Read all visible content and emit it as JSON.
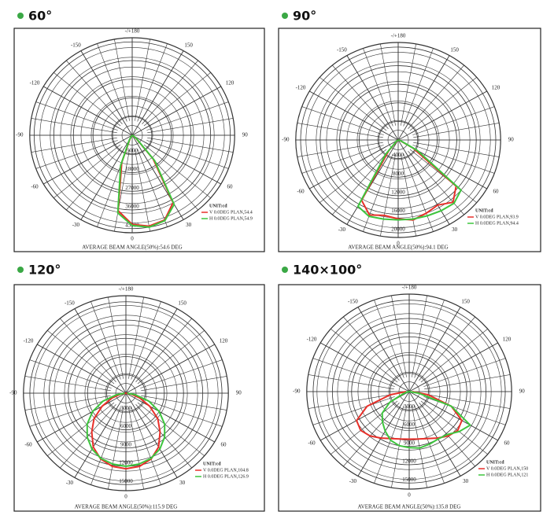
{
  "chart_data": [
    {
      "type": "polar",
      "title": "60°",
      "unit_label": "UNIT:cd",
      "note": "AVERAGE BEAM ANGLE(50%):54.6 DEG",
      "x": [
        -90,
        -80,
        -70,
        -60,
        -50,
        -40,
        -30,
        -20,
        -10,
        0,
        10,
        20,
        30,
        40,
        50,
        60,
        70,
        80,
        90
      ],
      "rlim": [
        0,
        47000
      ],
      "rticks": [
        9000,
        18000,
        27000,
        36000,
        45000
      ],
      "angle_ticks": [
        {
          "value": 180,
          "label": "-/+180"
        },
        -150,
        150,
        -120,
        120,
        -90,
        90,
        -60,
        60,
        -30,
        30,
        0
      ],
      "series": [
        {
          "name": "V 0.0DEG PLAN,54.4",
          "color": "#e8302a",
          "values": [
            0,
            0,
            0,
            0,
            0,
            300,
            2000,
            14000,
            37000,
            43000,
            44500,
            43500,
            37500,
            15000,
            2200,
            300,
            0,
            0,
            0
          ]
        },
        {
          "name": "H 0.0DEG PLAN,54.9",
          "color": "#3ec53e",
          "values": [
            0,
            0,
            0,
            0,
            0,
            400,
            2500,
            15500,
            38000,
            43500,
            45000,
            43800,
            38500,
            16000,
            2600,
            400,
            0,
            0,
            0
          ]
        }
      ]
    },
    {
      "type": "polar",
      "title": "90°",
      "unit_label": "UNIT:cd",
      "note": "AVERAGE BEAM ANGLE(50%):94.1 DEG",
      "x": [
        -90,
        -80,
        -70,
        -60,
        -50,
        -40,
        -30,
        -20,
        -10,
        0,
        10,
        20,
        30,
        40,
        50,
        60,
        70,
        80,
        90
      ],
      "rlim": [
        0,
        21000
      ],
      "rticks": [
        4000,
        8000,
        12000,
        16000,
        20000
      ],
      "angle_ticks": [
        {
          "value": 180,
          "label": "-/+180"
        },
        -150,
        150,
        -120,
        120,
        -90,
        90,
        -60,
        60,
        -30,
        30,
        0
      ],
      "series": [
        {
          "name": "V 0.0DEG PLAN,93.9",
          "color": "#e8302a",
          "values": [
            0,
            0,
            0,
            0,
            300,
            3000,
            15000,
            17200,
            16500,
            17000,
            17500,
            16800,
            16200,
            17500,
            15500,
            3500,
            400,
            0,
            0
          ]
        },
        {
          "name": "H 0.0DEG PLAN,94.4",
          "color": "#3ec53e",
          "values": [
            0,
            0,
            0,
            0,
            500,
            4000,
            16500,
            17500,
            17300,
            17200,
            17300,
            17400,
            17600,
            17800,
            16800,
            4500,
            600,
            0,
            0
          ]
        }
      ]
    },
    {
      "type": "polar",
      "title": "120°",
      "unit_label": "UNIT:cd",
      "note": "AVERAGE BEAM ANGLE(50%):115.9 DEG",
      "x": [
        -90,
        -80,
        -70,
        -60,
        -50,
        -40,
        -30,
        -20,
        -10,
        0,
        10,
        20,
        30,
        40,
        50,
        60,
        70,
        80,
        90
      ],
      "rlim": [
        0,
        16000
      ],
      "rticks": [
        3000,
        6000,
        9000,
        12000,
        15000
      ],
      "angle_ticks": [
        {
          "value": 180,
          "label": "-/+180"
        },
        -150,
        150,
        -120,
        120,
        -90,
        90,
        -60,
        60,
        -30,
        30,
        0
      ],
      "series": [
        {
          "name": "V 0.0DEG PLAN,104.8",
          "color": "#e8302a",
          "values": [
            0,
            800,
            2300,
            4300,
            6500,
            8300,
            10200,
            11500,
            12200,
            12400,
            12200,
            11500,
            10200,
            8300,
            6500,
            4300,
            2300,
            800,
            0
          ]
        },
        {
          "name": "H 0.0DEG PLAN,126.9",
          "color": "#3ec53e",
          "values": [
            200,
            1500,
            3800,
            6000,
            7900,
            9400,
            10600,
            11400,
            11800,
            12000,
            11800,
            11400,
            10600,
            9400,
            7900,
            6000,
            3800,
            1500,
            200
          ]
        }
      ]
    },
    {
      "type": "polar",
      "title": "140×100°",
      "unit_label": "UNIT:cd",
      "note": "AVERAGE BEAM ANGLE(50%):135.8 DEG",
      "x": [
        -90,
        -80,
        -70,
        -60,
        -50,
        -40,
        -30,
        -20,
        -10,
        0,
        10,
        20,
        30,
        40,
        50,
        60,
        70,
        80,
        90
      ],
      "rlim": [
        0,
        16000
      ],
      "rticks": [
        3000,
        6000,
        9000,
        12000,
        15000
      ],
      "angle_ticks": [
        {
          "value": 180,
          "label": "-/+180"
        },
        -150,
        150,
        -120,
        120,
        -90,
        90,
        -60,
        60,
        -30,
        30,
        0
      ],
      "series": [
        {
          "name": "V 0.0DEG PLAN,150",
          "color": "#e8302a",
          "values": [
            500,
            3000,
            7000,
            9500,
            9900,
            9500,
            8800,
            8200,
            7900,
            7800,
            7900,
            8200,
            8800,
            9500,
            9900,
            9500,
            7000,
            3000,
            500
          ]
        },
        {
          "name": "H 0.0DEG PLAN,121",
          "color": "#3ec53e",
          "values": [
            0,
            200,
            1000,
            3500,
            5500,
            6500,
            7500,
            8500,
            9000,
            9200,
            9400,
            9200,
            9000,
            9200,
            10200,
            11000,
            7000,
            1500,
            0
          ]
        }
      ]
    }
  ]
}
